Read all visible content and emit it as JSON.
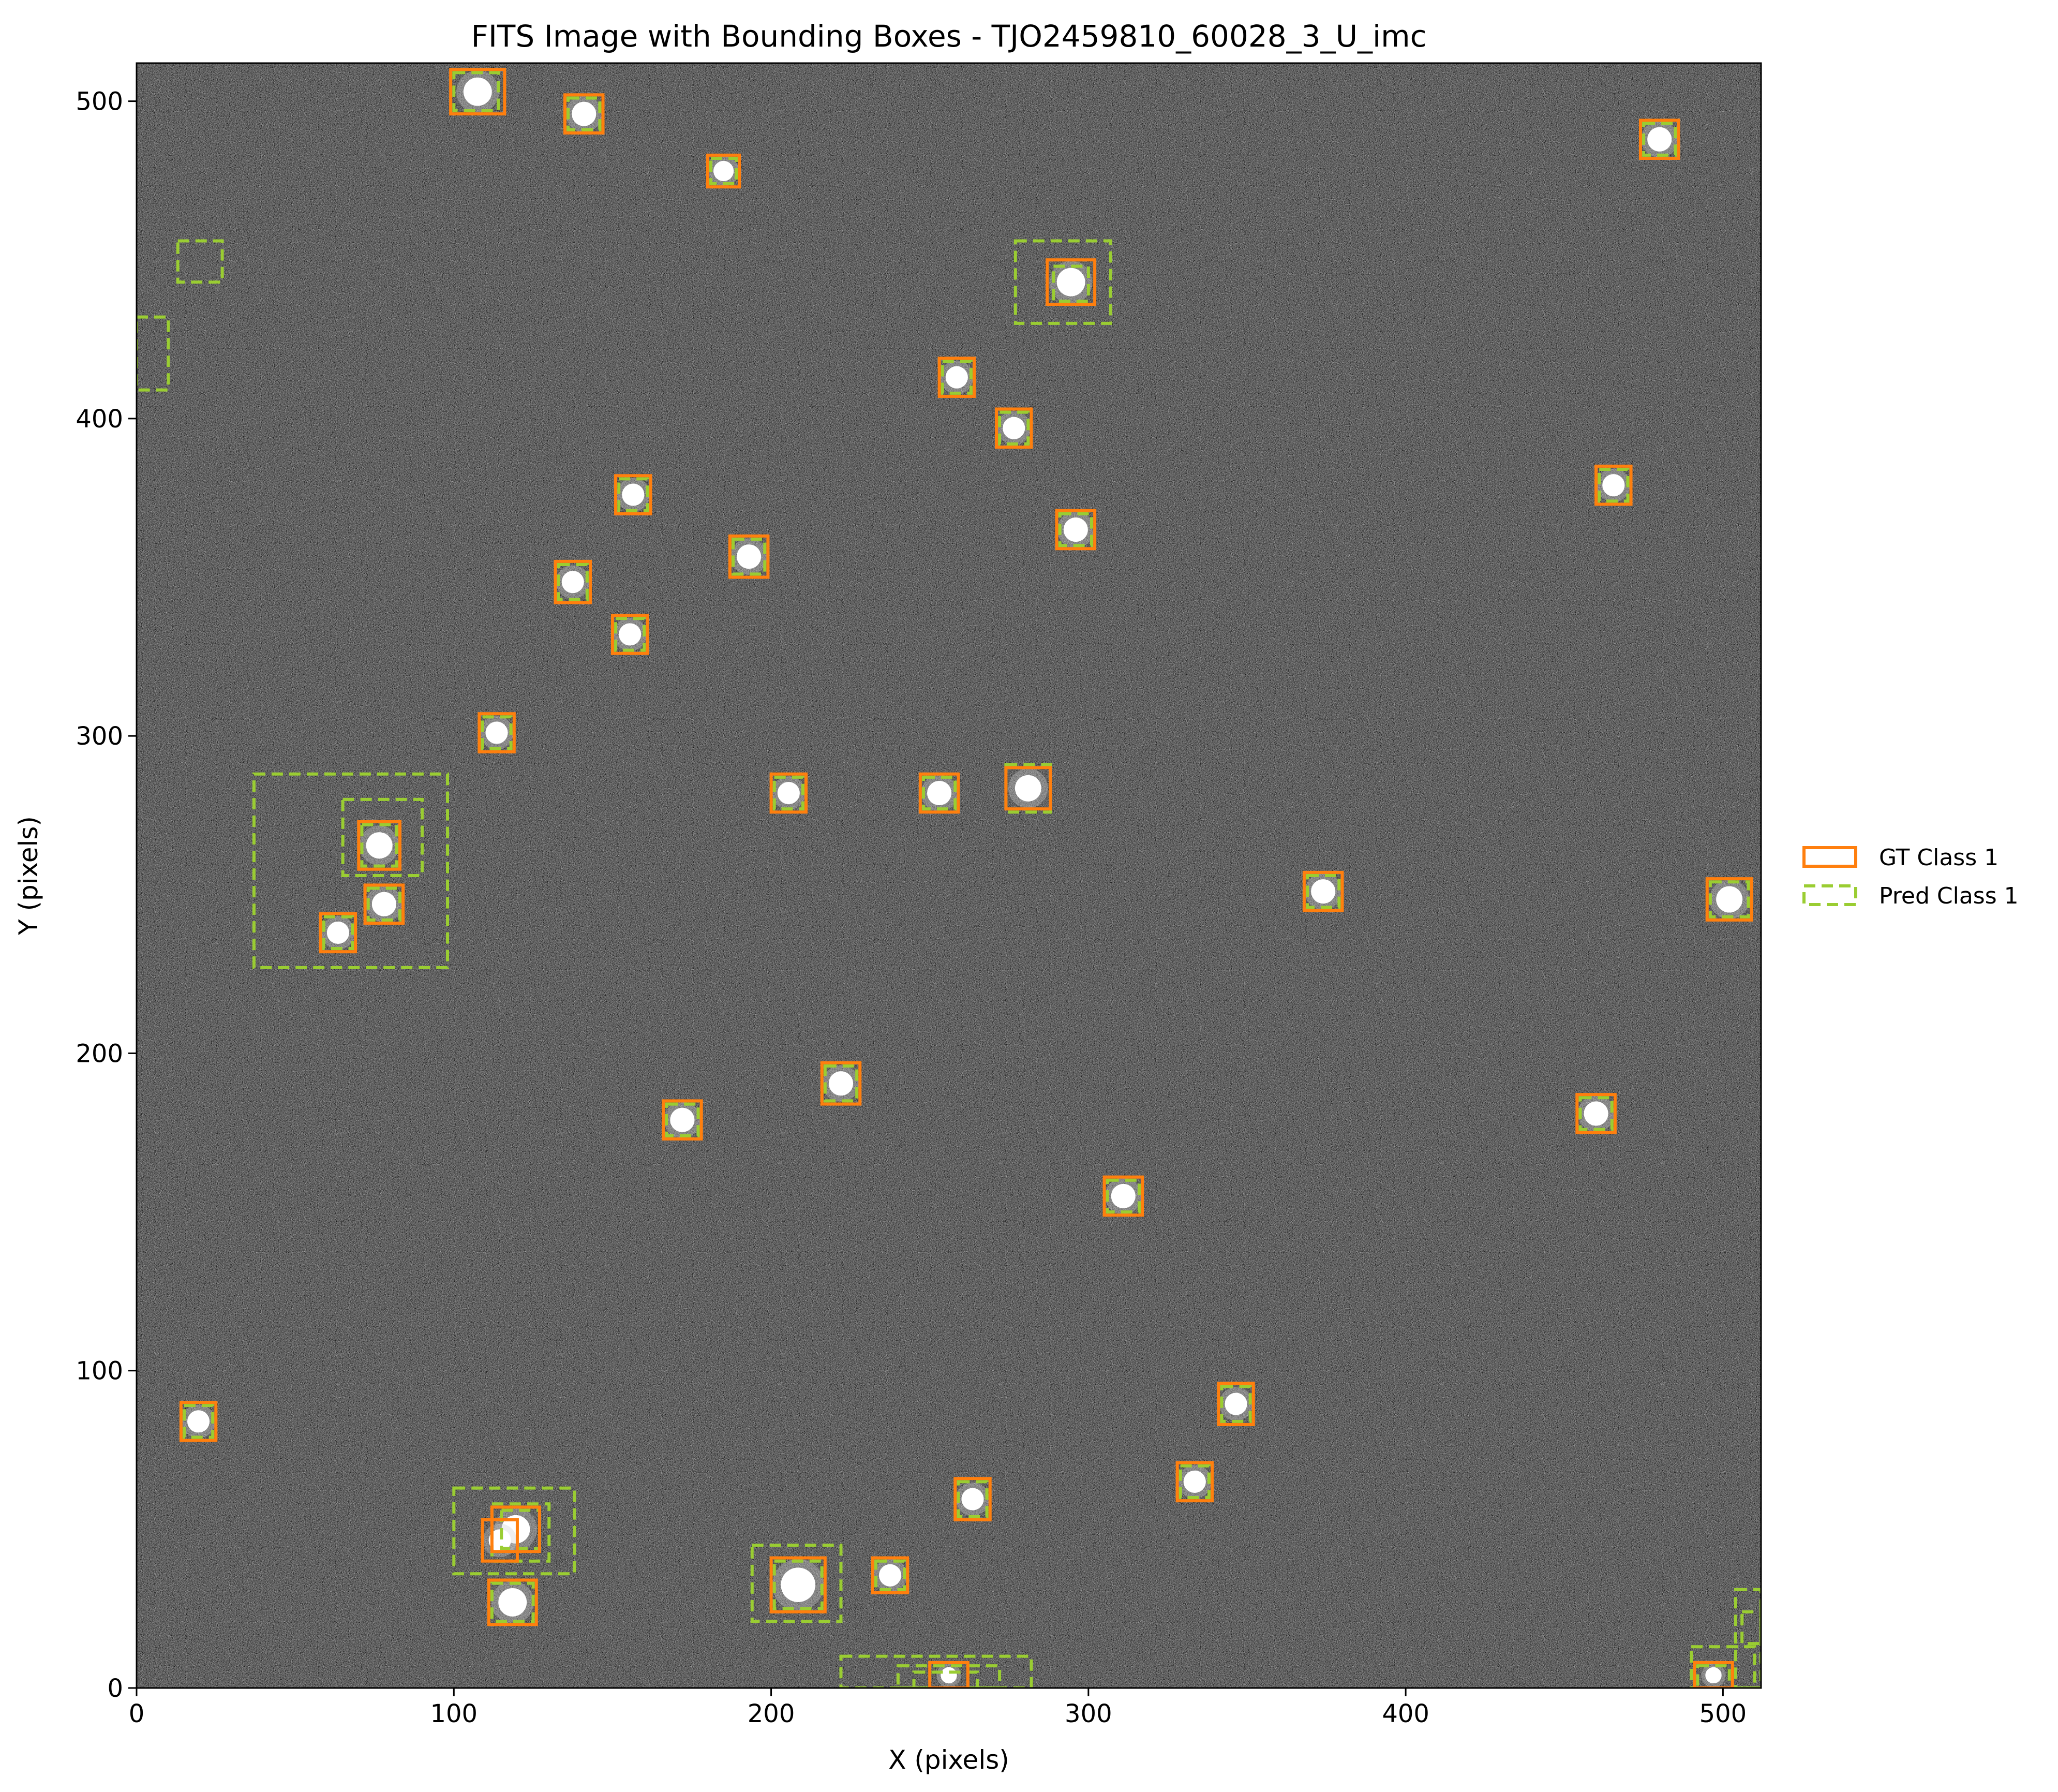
{
  "chart_data": {
    "type": "scatter",
    "subtype": "image-with-bounding-boxes",
    "title": "FITS Image with Bounding Boxes - TJO2459810_60028_3_U_imc",
    "xlabel": "X (pixels)",
    "ylabel": "Y (pixels)",
    "xlim": [
      0,
      512
    ],
    "ylim": [
      0,
      512
    ],
    "xticks": [
      0,
      100,
      200,
      300,
      400,
      500
    ],
    "yticks": [
      0,
      100,
      200,
      300,
      400,
      500
    ],
    "legend_position": "right",
    "legend": [
      {
        "key": "gt",
        "name": "GT Class 1",
        "style": "solid",
        "color": "#ff7f0e"
      },
      {
        "key": "pred",
        "name": "Pred Class 1",
        "style": "dashed",
        "color": "#9acd32"
      }
    ],
    "colors": {
      "gt": "#ff7f0e",
      "pred": "#9acd32",
      "background": "#3a3a3a"
    },
    "gt_boxes": [
      [
        99,
        496,
        116,
        510
      ],
      [
        135,
        490,
        147,
        502
      ],
      [
        180,
        473,
        190,
        483
      ],
      [
        474,
        482,
        486,
        494
      ],
      [
        287,
        436,
        302,
        450
      ],
      [
        253,
        407,
        264,
        419
      ],
      [
        271,
        391,
        282,
        403
      ],
      [
        460,
        373,
        471,
        385
      ],
      [
        151,
        370,
        162,
        382
      ],
      [
        290,
        359,
        302,
        371
      ],
      [
        187,
        350,
        199,
        363
      ],
      [
        132,
        342,
        143,
        355
      ],
      [
        150,
        326,
        161,
        338
      ],
      [
        108,
        295,
        119,
        307
      ],
      [
        200,
        276,
        211,
        288
      ],
      [
        247,
        276,
        259,
        288
      ],
      [
        274,
        277,
        288,
        290
      ],
      [
        70,
        258,
        83,
        273
      ],
      [
        72,
        241,
        84,
        253
      ],
      [
        58,
        232,
        69,
        244
      ],
      [
        368,
        245,
        380,
        257
      ],
      [
        495,
        242,
        509,
        255
      ],
      [
        216,
        184,
        228,
        197
      ],
      [
        166,
        173,
        178,
        185
      ],
      [
        454,
        175,
        466,
        187
      ],
      [
        305,
        149,
        317,
        161
      ],
      [
        14,
        78,
        25,
        90
      ],
      [
        341,
        83,
        352,
        96
      ],
      [
        328,
        59,
        339,
        71
      ],
      [
        258,
        53,
        269,
        66
      ],
      [
        232,
        30,
        243,
        41
      ],
      [
        112,
        43,
        127,
        57
      ],
      [
        109,
        40,
        120,
        53
      ],
      [
        111,
        20,
        126,
        34
      ],
      [
        200,
        24,
        217,
        41
      ],
      [
        250,
        0,
        262,
        8
      ],
      [
        491,
        0,
        503,
        8
      ]
    ],
    "pred_boxes": [
      [
        100,
        497,
        114,
        509
      ],
      [
        136,
        491,
        146,
        501
      ],
      [
        181,
        474,
        189,
        482
      ],
      [
        475,
        483,
        485,
        493
      ],
      [
        277,
        430,
        307,
        456
      ],
      [
        289,
        437,
        300,
        448
      ],
      [
        254,
        408,
        263,
        418
      ],
      [
        272,
        392,
        281,
        402
      ],
      [
        461,
        374,
        470,
        384
      ],
      [
        13,
        443,
        27,
        456
      ],
      [
        0,
        409,
        10,
        432
      ],
      [
        152,
        371,
        161,
        381
      ],
      [
        291,
        360,
        301,
        370
      ],
      [
        188,
        351,
        198,
        362
      ],
      [
        133,
        343,
        142,
        354
      ],
      [
        151,
        327,
        160,
        337
      ],
      [
        109,
        296,
        118,
        306
      ],
      [
        201,
        277,
        210,
        287
      ],
      [
        248,
        277,
        258,
        287
      ],
      [
        274,
        276,
        288,
        291
      ],
      [
        37,
        227,
        98,
        288
      ],
      [
        65,
        256,
        90,
        280
      ],
      [
        71,
        259,
        82,
        272
      ],
      [
        73,
        242,
        83,
        252
      ],
      [
        59,
        233,
        68,
        243
      ],
      [
        369,
        246,
        379,
        256
      ],
      [
        496,
        243,
        508,
        254
      ],
      [
        217,
        185,
        227,
        196
      ],
      [
        167,
        174,
        177,
        184
      ],
      [
        455,
        176,
        465,
        186
      ],
      [
        306,
        150,
        316,
        160
      ],
      [
        15,
        79,
        24,
        89
      ],
      [
        342,
        84,
        351,
        95
      ],
      [
        329,
        60,
        338,
        70
      ],
      [
        259,
        54,
        268,
        65
      ],
      [
        233,
        31,
        242,
        40
      ],
      [
        100,
        36,
        138,
        63
      ],
      [
        112,
        40,
        130,
        58
      ],
      [
        115,
        44,
        127,
        56
      ],
      [
        112,
        21,
        125,
        33
      ],
      [
        194,
        21,
        222,
        45
      ],
      [
        201,
        25,
        216,
        40
      ],
      [
        222,
        0,
        282,
        10
      ],
      [
        240,
        0,
        272,
        7
      ],
      [
        245,
        0,
        265,
        5
      ],
      [
        490,
        0,
        510,
        13
      ],
      [
        492,
        0,
        502,
        7
      ],
      [
        504,
        0,
        512,
        31
      ],
      [
        506,
        14,
        512,
        24
      ]
    ]
  }
}
